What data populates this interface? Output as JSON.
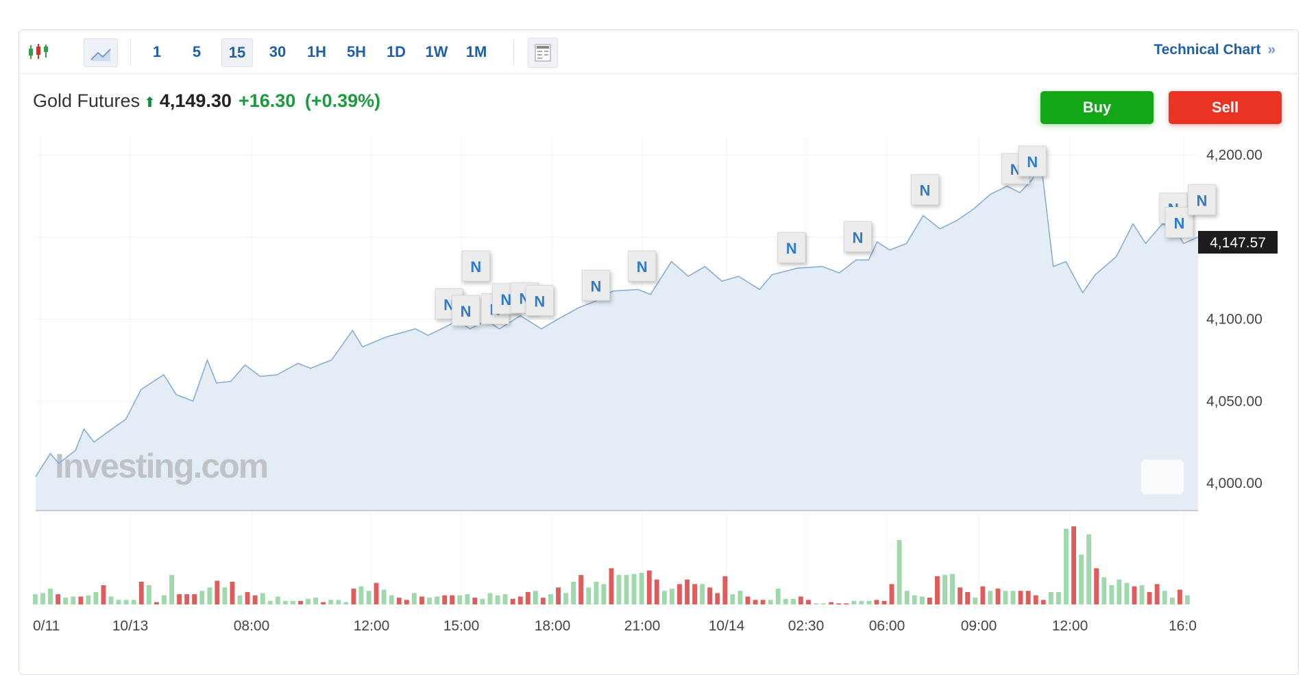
{
  "toolbar": {
    "chart_type_icons": [
      "candlestick-icon",
      "line-chart-icon"
    ],
    "intervals": [
      "1",
      "5",
      "15",
      "30",
      "1H",
      "5H",
      "1D",
      "1W",
      "1M"
    ],
    "selected_interval": "15",
    "table_icon": "table-layout-icon",
    "technical_chart_label": "Technical Chart",
    "technical_chart_arrow": "»"
  },
  "header": {
    "instrument": "Gold Futures",
    "direction_icon": "arrow-up-icon",
    "price": "4,149.30",
    "change": "+16.30",
    "change_pct": "(+0.39%)",
    "buy_label": "Buy",
    "sell_label": "Sell"
  },
  "colors": {
    "accent": "#1f5fa8",
    "buy": "#13a617",
    "sell": "#ea3323",
    "line": "#86aed3",
    "area": "#e4edf6",
    "vol_up": "#9fd8ab",
    "vol_down": "#e05c5c"
  },
  "watermark": "Investing.com",
  "news_marker_label": "N",
  "chart_data": {
    "type": "area",
    "y_ticks": [
      "4,200.00",
      "4,100.00",
      "4,050.00",
      "4,000.00"
    ],
    "ylim": [
      4000,
      4200
    ],
    "x_ticks": [
      "0/11",
      "10/13",
      "08:00",
      "12:00",
      "15:00",
      "18:00",
      "21:00",
      "10/14",
      "02:30",
      "06:00",
      "09:00",
      "12:00",
      "16:0"
    ],
    "current_price_label": "4,147.57",
    "grid": true,
    "series": [
      {
        "values": [
          4004,
          4018,
          4012,
          4020,
          4033,
          4025,
          4031,
          4039,
          4057,
          4066,
          4054,
          4050,
          4075,
          4061,
          4062,
          4072,
          4065,
          4066,
          4073,
          4070,
          4075,
          4093,
          4083,
          4089,
          4094,
          4090,
          4095,
          4099,
          4094,
          4099,
          4094,
          4102,
          4094,
          4100,
          4107,
          4111,
          4117,
          4118,
          4115,
          4135,
          4126,
          4132,
          4123,
          4126,
          4118,
          4127,
          4131,
          4132,
          4128,
          4136,
          4136,
          4147,
          4142,
          4146,
          4163,
          4155,
          4160,
          4167,
          4176,
          4181,
          4177,
          4185,
          4197,
          4132,
          4135,
          4116,
          4127,
          4138,
          4158,
          4146,
          4158,
          4156,
          4146,
          4150
        ]
      }
    ],
    "volume": {
      "values": [
        45,
        50,
        70,
        45,
        30,
        35,
        35,
        40,
        55,
        85,
        35,
        20,
        20,
        20,
        100,
        85,
        10,
        40,
        130,
        45,
        45,
        45,
        60,
        75,
        105,
        75,
        100,
        40,
        55,
        40,
        50,
        15,
        35,
        15,
        15,
        15,
        25,
        30,
        10,
        20,
        20,
        10,
        70,
        80,
        60,
        95,
        65,
        40,
        30,
        20,
        50,
        35,
        30,
        35,
        40,
        40,
        40,
        45,
        30,
        25,
        50,
        40,
        45,
        25,
        35,
        55,
        60,
        30,
        45,
        75,
        50,
        100,
        130,
        75,
        100,
        90,
        160,
        130,
        130,
        135,
        140,
        150,
        110,
        60,
        70,
        90,
        110,
        90,
        90,
        75,
        50,
        125,
        45,
        60,
        35,
        20,
        20,
        20,
        70,
        25,
        25,
        35,
        20,
        5,
        5,
        10,
        5,
        5,
        15,
        15,
        15,
        20,
        15,
        90,
        285,
        60,
        40,
        35,
        30,
        125,
        130,
        135,
        75,
        55,
        30,
        80,
        60,
        70,
        60,
        60,
        60,
        60,
        40,
        20,
        55,
        55,
        335,
        345,
        220,
        310,
        160,
        120,
        85,
        110,
        95,
        80,
        85,
        55,
        90,
        60,
        30,
        65,
        40
      ],
      "direction": "ggg rggrggrggggrgrggrrrggrgrgrrgggggrggrgggrggrggrrgrggrrggrggggrrrgrgrggrgggrggggrrggrrrgrrrggrrrggggrrggrrrgggrrrggggrrggrrgrgrggrrrrgggrggrggggrgrrggrgrgrrg"
    }
  }
}
